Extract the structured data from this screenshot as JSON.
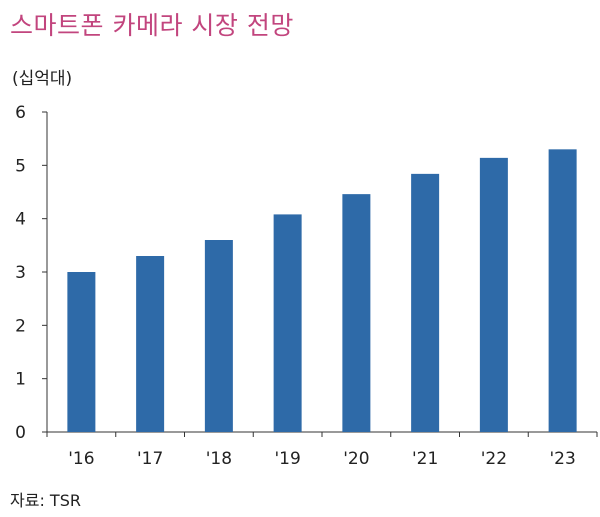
{
  "chart_data": {
    "type": "bar",
    "title": "스마트폰 카메라 시장 전망",
    "unit_label": "(십억대)",
    "source": "자료: TSR",
    "categories": [
      "'16",
      "'17",
      "'18",
      "'19",
      "'20",
      "'21",
      "'22",
      "'23"
    ],
    "values": [
      3.0,
      3.3,
      3.6,
      4.08,
      4.46,
      4.84,
      5.14,
      5.3
    ],
    "y_ticks": [
      "0",
      "1",
      "2",
      "3",
      "4",
      "5",
      "6"
    ],
    "ylim": [
      0,
      6
    ],
    "grid": false,
    "bar_color": "#2e6aa8"
  }
}
